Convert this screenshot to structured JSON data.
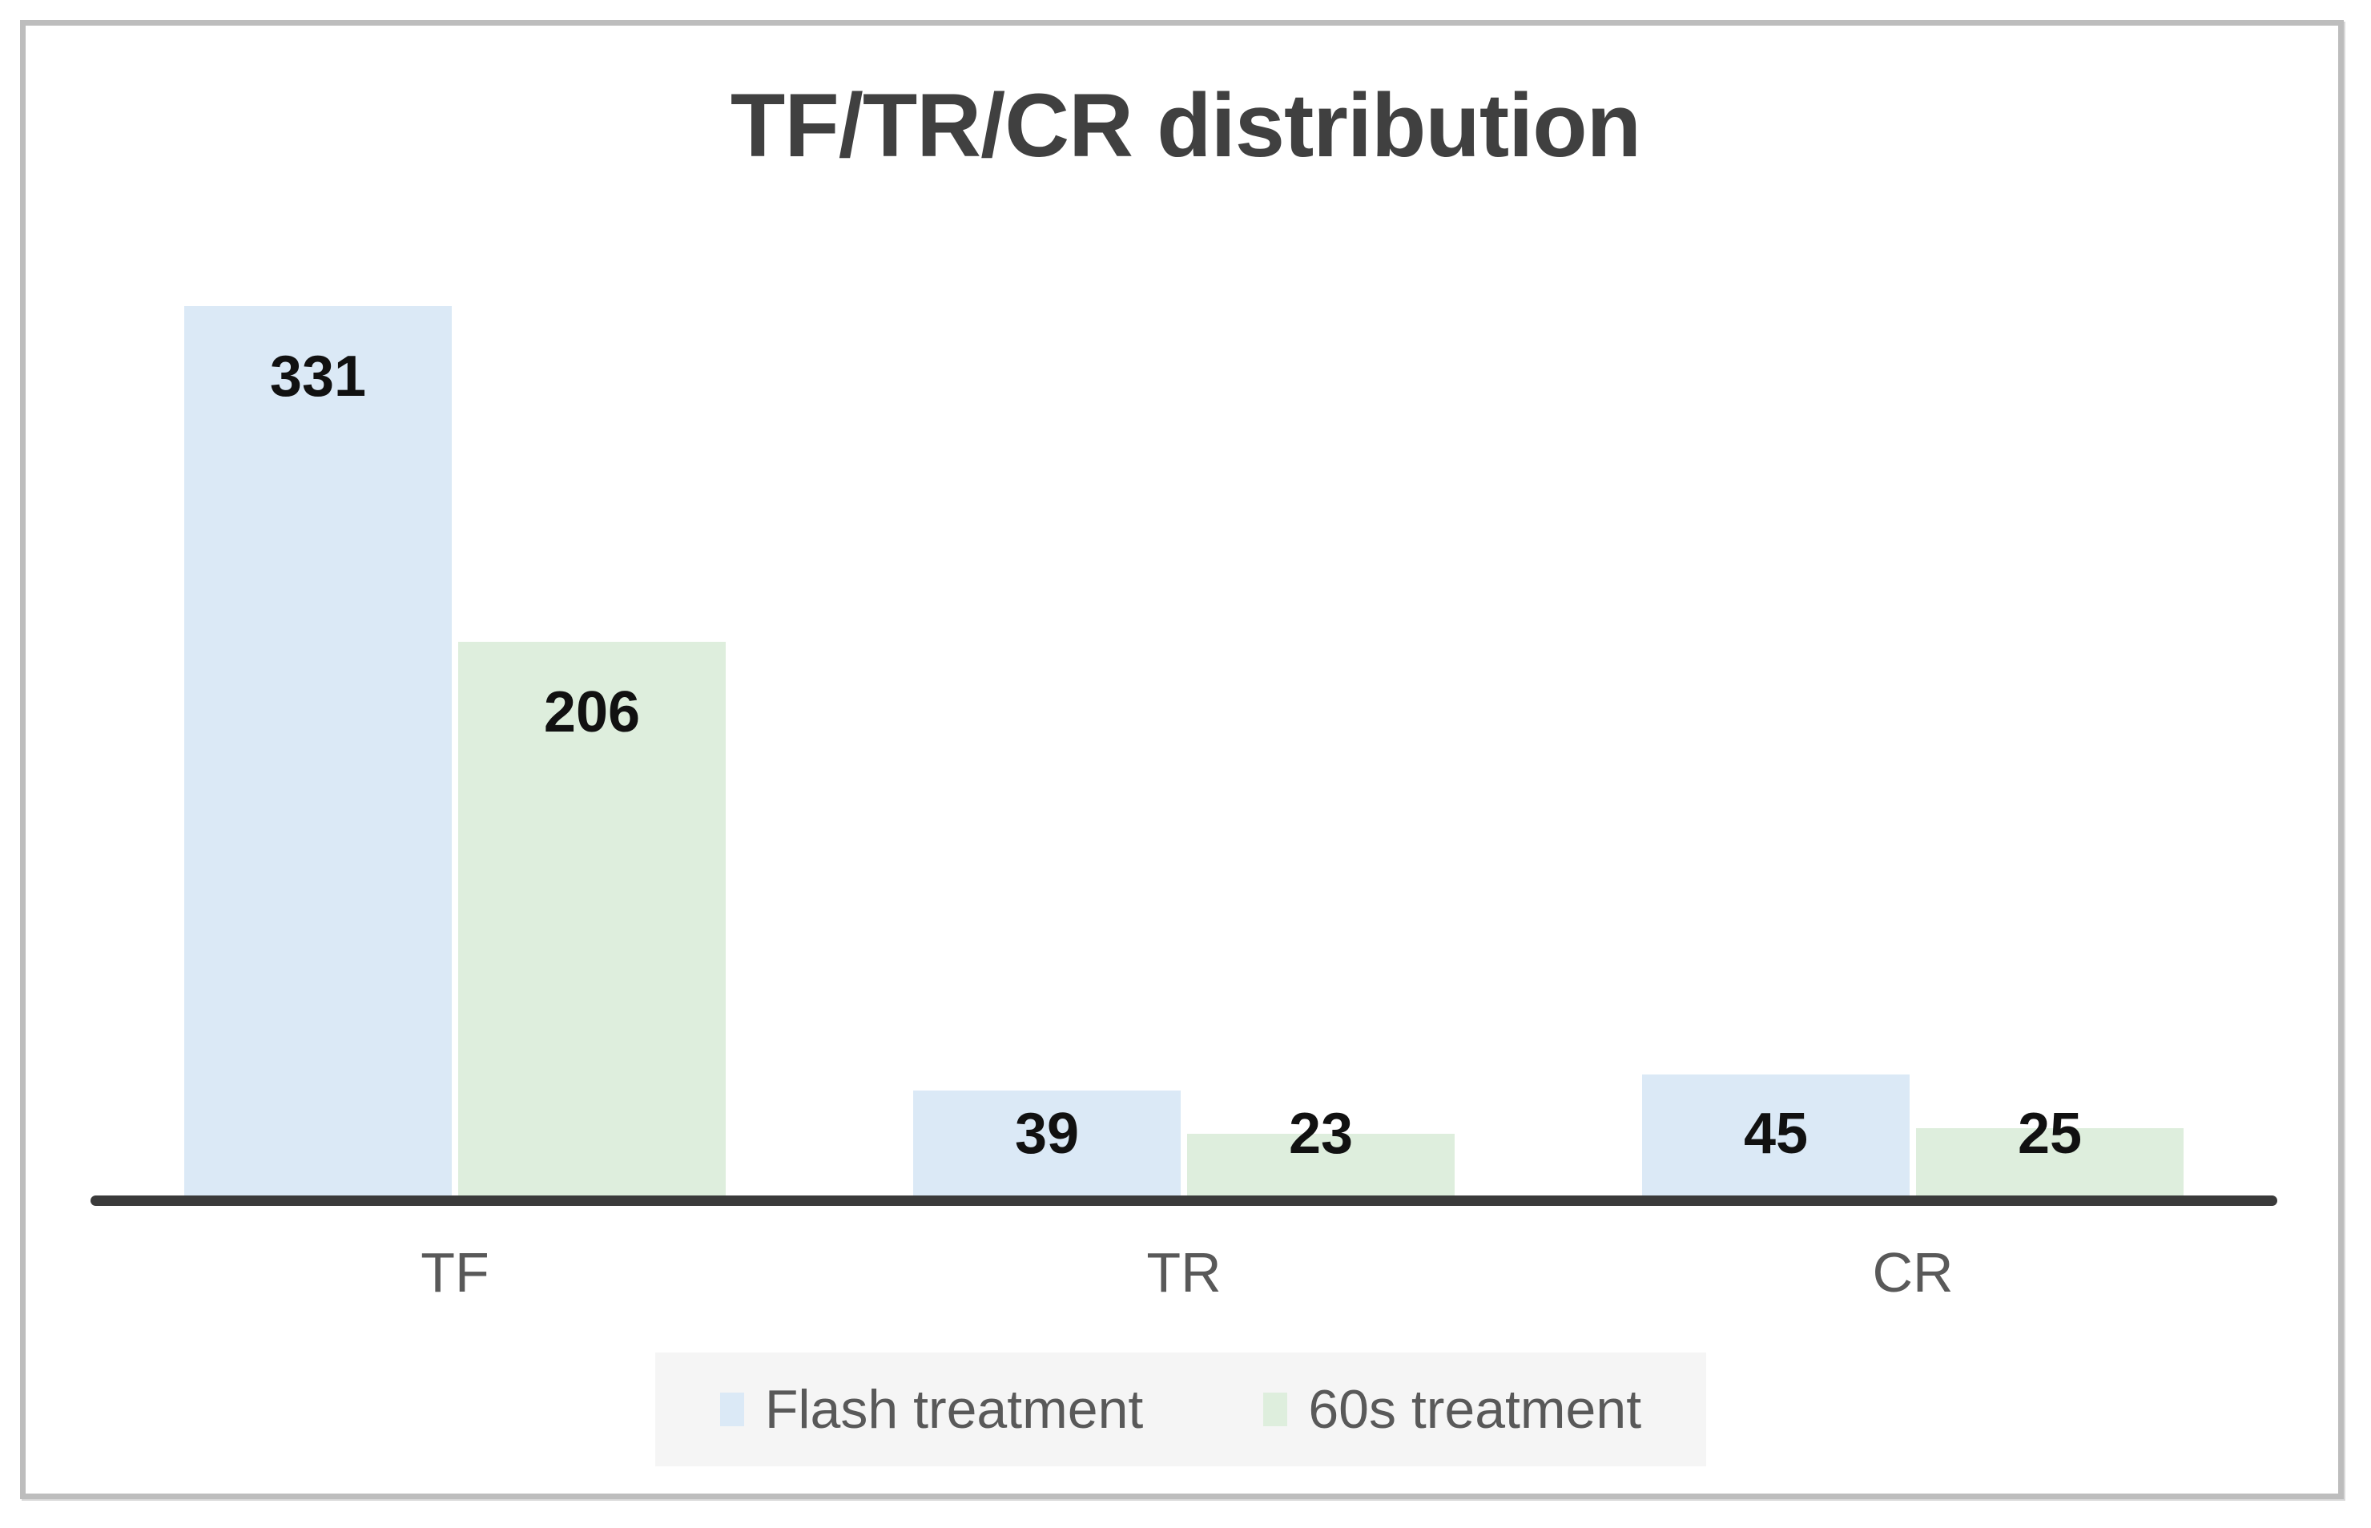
{
  "chart_data": {
    "type": "bar",
    "title": "TF/TR/CR distribution",
    "categories": [
      "TF",
      "TR",
      "CR"
    ],
    "series": [
      {
        "name": "Flash treatment",
        "color": "#dbe9f6",
        "values": [
          331,
          39,
          45
        ]
      },
      {
        "name": "60s treatment",
        "color": "#deeedd",
        "values": [
          206,
          23,
          25
        ]
      }
    ],
    "xlabel": "",
    "ylabel": "",
    "ylim": [
      0,
      331
    ],
    "grid": false,
    "data_labels": true,
    "legend_position": "bottom"
  },
  "colors": {
    "axis_line": "#3a3a3a",
    "title_text": "#404040",
    "category_text": "#595959",
    "data_label_text": "#111111",
    "legend_background": "#f5f5f5",
    "frame_border": "#bdbdbd"
  }
}
